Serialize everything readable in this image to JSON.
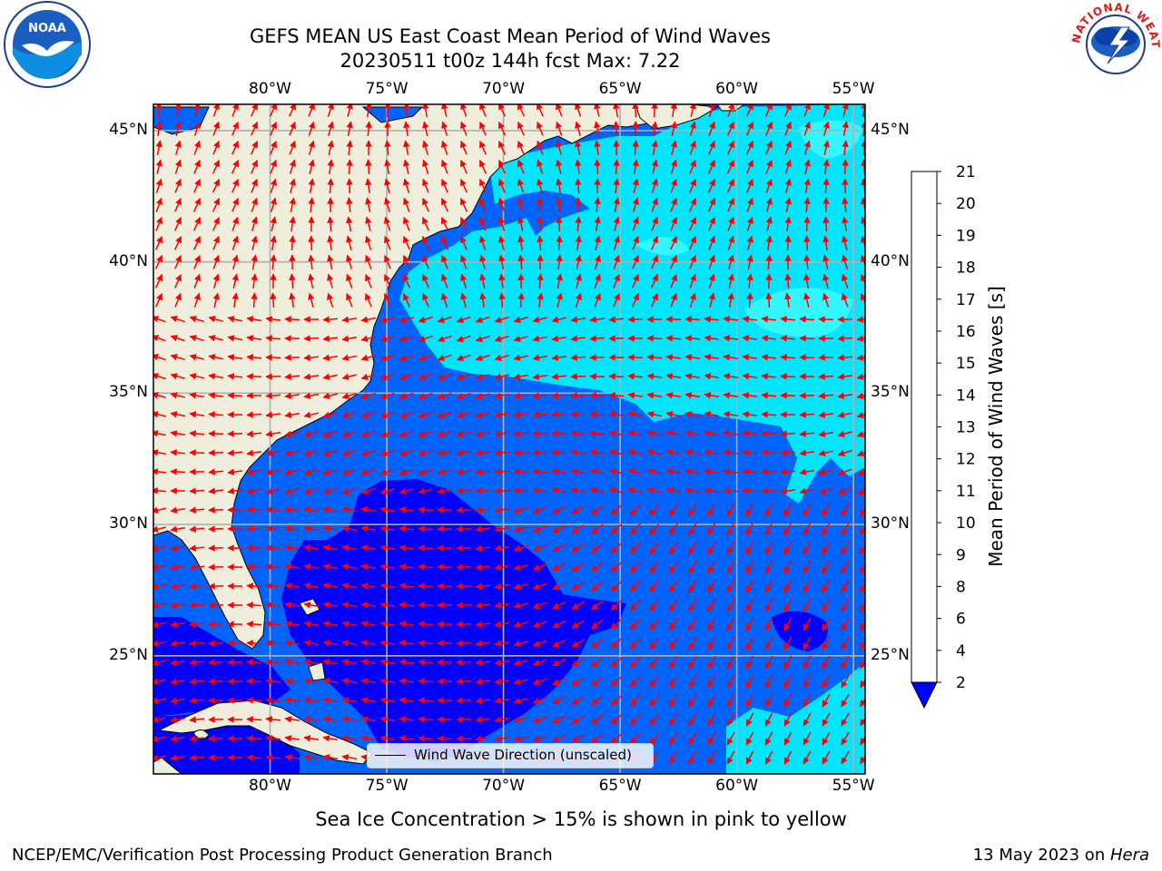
{
  "title_line1": "GEFS MEAN US East Coast Mean Period of Wind Waves",
  "title_line2": "20230511 t00z 144h fcst   Max: 7.22",
  "logos": {
    "left": {
      "name": "NOAA",
      "text": "NOAA"
    },
    "right": {
      "name": "National Weather Service",
      "text": "NATIONAL WEATHER SERVICE"
    }
  },
  "map": {
    "lon_range": [
      -85,
      -54.5
    ],
    "lat_range": [
      20.5,
      46
    ],
    "lon_ticks": [
      -80,
      -75,
      -70,
      -65,
      -60,
      -55
    ],
    "lon_tick_labels": [
      "80°W",
      "75°W",
      "70°W",
      "65°W",
      "60°W",
      "55°W"
    ],
    "lat_ticks": [
      25,
      30,
      35,
      40,
      45
    ],
    "lat_tick_labels": [
      "25°N",
      "30°N",
      "35°N",
      "40°N",
      "45°N"
    ],
    "land_color": "#efeedc",
    "grid_color": "#b0b0b0",
    "arrow_color": "#ff0000"
  },
  "colorbar": {
    "label": "Mean Period of Wind Waves [s]",
    "tick_labels": [
      "2",
      "4",
      "6",
      "8",
      "9",
      "10",
      "11",
      "12",
      "13",
      "14",
      "15",
      "16",
      "17",
      "18",
      "19",
      "20",
      "21"
    ],
    "colors": [
      "#0064ff",
      "#00e6ff",
      "#33f6ff",
      "#66ffff",
      "#99ffff",
      "#4ff57a",
      "#00e600",
      "#32e600",
      "#64e600",
      "#c8e600",
      "#e6e600",
      "#ffff00",
      "#ffe600",
      "#ffbe00",
      "#ff8c00",
      "#ff4b00",
      "#ff0000"
    ],
    "under_color": "#0000ff"
  },
  "legend": {
    "text": "Wind Wave Direction (unscaled)"
  },
  "sea_ice_note": "Sea Ice Concentration > 15% is shown in pink to yellow",
  "footer": {
    "left": "NCEP/EMC/Verification Post Processing Product Generation Branch",
    "right_date": "13 May 2023 on ",
    "right_machine": "Hera"
  }
}
